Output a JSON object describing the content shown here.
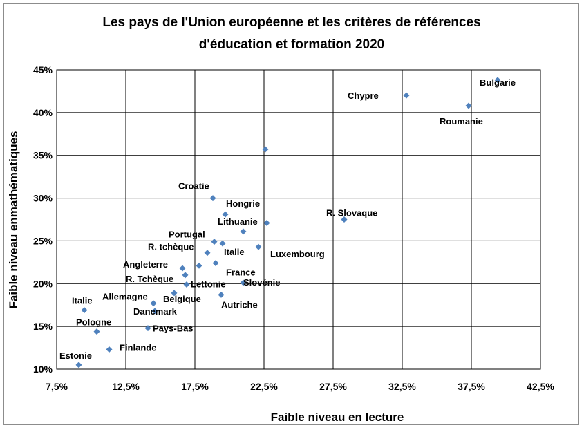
{
  "chart_data": {
    "type": "scatter",
    "title_lines": [
      "Les pays de l'Union européenne et les critères de références",
      "d'éducation et formation 2020"
    ],
    "xlabel": "Faible niveau en lecture",
    "ylabel": "Faible niveau enmathématiques",
    "xlim": [
      7.5,
      42.5
    ],
    "ylim": [
      10,
      45
    ],
    "x_ticks": [
      "7,5%",
      "12,5%",
      "17,5%",
      "22,5%",
      "27,5%",
      "32,5%",
      "37,5%",
      "42,5%"
    ],
    "y_ticks": [
      "10%",
      "15%",
      "20%",
      "25%",
      "30%",
      "35%",
      "40%",
      "45%"
    ],
    "marker_color": "#4f81bd",
    "grid": true,
    "points": [
      {
        "x": 39.4,
        "y": 43.8,
        "label": "Bulgarie"
      },
      {
        "x": 32.8,
        "y": 42.0,
        "label": "Chypre"
      },
      {
        "x": 37.3,
        "y": 40.8,
        "label": "Roumanie"
      },
      {
        "x": 22.6,
        "y": 35.7,
        "label": ""
      },
      {
        "x": 18.8,
        "y": 30.0,
        "label": "Croatie"
      },
      {
        "x": 28.3,
        "y": 27.5,
        "label": "R. Slovaque"
      },
      {
        "x": 19.7,
        "y": 28.1,
        "label": "Hongrie"
      },
      {
        "x": 22.7,
        "y": 27.1,
        "label": ""
      },
      {
        "x": 21.0,
        "y": 26.1,
        "label": "Lithuanie"
      },
      {
        "x": 18.9,
        "y": 24.9,
        "label": "Portugal"
      },
      {
        "x": 19.5,
        "y": 24.7,
        "label": "Italie"
      },
      {
        "x": 22.1,
        "y": 24.3,
        "label": "Luxembourg"
      },
      {
        "x": 18.4,
        "y": 23.6,
        "label": "R. tchèque"
      },
      {
        "x": 19.0,
        "y": 22.4,
        "label": "France"
      },
      {
        "x": 17.8,
        "y": 22.1,
        "label": ""
      },
      {
        "x": 16.6,
        "y": 21.8,
        "label": "Angleterre"
      },
      {
        "x": 16.8,
        "y": 21.0,
        "label": "R. Tchèque"
      },
      {
        "x": 16.9,
        "y": 19.9,
        "label": "Lettonie"
      },
      {
        "x": 21.0,
        "y": 20.1,
        "label": "Slovénie"
      },
      {
        "x": 16.0,
        "y": 18.9,
        "label": "Belgique"
      },
      {
        "x": 19.4,
        "y": 18.7,
        "label": "Autriche"
      },
      {
        "x": 14.5,
        "y": 17.7,
        "label": "Allemagne"
      },
      {
        "x": 14.6,
        "y": 16.8,
        "label": "Danemark"
      },
      {
        "x": 9.5,
        "y": 16.9,
        "label": "Italie"
      },
      {
        "x": 14.1,
        "y": 14.8,
        "label": "Pays-Bas"
      },
      {
        "x": 10.4,
        "y": 14.4,
        "label": "Pologne"
      },
      {
        "x": 11.3,
        "y": 12.3,
        "label": "Finlande"
      },
      {
        "x": 9.1,
        "y": 10.5,
        "label": "Estonie"
      }
    ]
  }
}
